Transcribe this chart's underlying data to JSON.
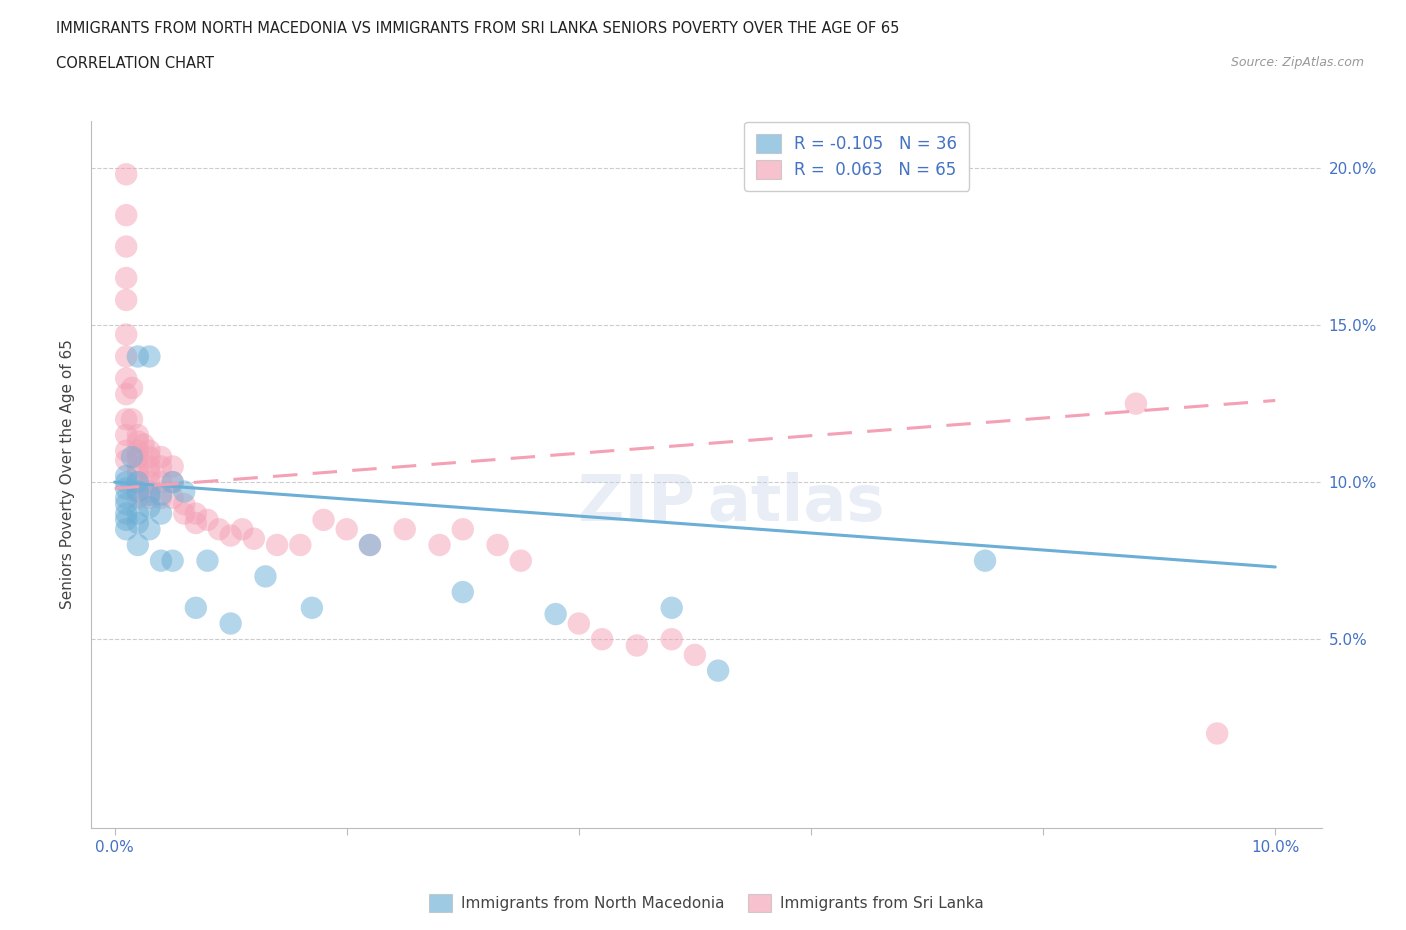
{
  "title": "IMMIGRANTS FROM NORTH MACEDONIA VS IMMIGRANTS FROM SRI LANKA SENIORS POVERTY OVER THE AGE OF 65",
  "subtitle": "CORRELATION CHART",
  "source": "Source: ZipAtlas.com",
  "ylabel": "Seniors Poverty Over the Age of 65",
  "xlim": [
    -0.002,
    0.104
  ],
  "ylim": [
    -0.01,
    0.215
  ],
  "color_blue": "#6baed6",
  "color_pink": "#f4a0b5",
  "legend1_label": "R = -0.105   N = 36",
  "legend2_label": "R =  0.063   N = 65",
  "nm_line_x": [
    0.0,
    0.1
  ],
  "nm_line_y": [
    0.1,
    0.073
  ],
  "sl_line_x": [
    0.0,
    0.1
  ],
  "sl_line_y": [
    0.098,
    0.126
  ],
  "ytick_positions": [
    0.0,
    0.05,
    0.1,
    0.15,
    0.2
  ],
  "ytick_labels": [
    "",
    "5.0%",
    "10.0%",
    "15.0%",
    "20.0%"
  ],
  "xtick_positions": [
    0.0,
    0.02,
    0.04,
    0.06,
    0.08,
    0.1
  ],
  "xtick_labels": [
    "0.0%",
    "",
    "",
    "",
    "",
    "10.0%"
  ],
  "hgrid_lines": [
    0.05,
    0.1,
    0.15,
    0.2
  ],
  "nm_x": [
    0.001,
    0.001,
    0.001,
    0.001,
    0.001,
    0.001,
    0.001,
    0.001,
    0.0015,
    0.002,
    0.002,
    0.002,
    0.002,
    0.002,
    0.002,
    0.003,
    0.003,
    0.003,
    0.003,
    0.004,
    0.004,
    0.004,
    0.005,
    0.005,
    0.006,
    0.007,
    0.008,
    0.01,
    0.013,
    0.017,
    0.022,
    0.03,
    0.038,
    0.048,
    0.052,
    0.075
  ],
  "nm_y": [
    0.095,
    0.098,
    0.102,
    0.1,
    0.093,
    0.09,
    0.088,
    0.085,
    0.108,
    0.097,
    0.09,
    0.087,
    0.08,
    0.1,
    0.14,
    0.096,
    0.092,
    0.085,
    0.14,
    0.09,
    0.096,
    0.075,
    0.1,
    0.075,
    0.097,
    0.06,
    0.075,
    0.055,
    0.07,
    0.06,
    0.08,
    0.065,
    0.058,
    0.06,
    0.04,
    0.075
  ],
  "sl_x": [
    0.001,
    0.001,
    0.001,
    0.001,
    0.001,
    0.001,
    0.001,
    0.001,
    0.001,
    0.001,
    0.001,
    0.001,
    0.001,
    0.0015,
    0.0015,
    0.002,
    0.002,
    0.002,
    0.002,
    0.002,
    0.002,
    0.002,
    0.002,
    0.002,
    0.0025,
    0.003,
    0.003,
    0.003,
    0.003,
    0.003,
    0.003,
    0.003,
    0.004,
    0.004,
    0.004,
    0.004,
    0.005,
    0.005,
    0.005,
    0.006,
    0.006,
    0.007,
    0.007,
    0.008,
    0.009,
    0.01,
    0.011,
    0.012,
    0.014,
    0.016,
    0.018,
    0.02,
    0.022,
    0.025,
    0.028,
    0.03,
    0.033,
    0.035,
    0.04,
    0.042,
    0.045,
    0.048,
    0.05,
    0.088,
    0.095
  ],
  "sl_y": [
    0.198,
    0.185,
    0.175,
    0.165,
    0.158,
    0.147,
    0.14,
    0.133,
    0.128,
    0.12,
    0.115,
    0.11,
    0.107,
    0.13,
    0.12,
    0.115,
    0.113,
    0.11,
    0.108,
    0.105,
    0.103,
    0.1,
    0.097,
    0.095,
    0.112,
    0.11,
    0.108,
    0.105,
    0.103,
    0.1,
    0.097,
    0.095,
    0.108,
    0.105,
    0.1,
    0.095,
    0.105,
    0.1,
    0.095,
    0.093,
    0.09,
    0.09,
    0.087,
    0.088,
    0.085,
    0.083,
    0.085,
    0.082,
    0.08,
    0.08,
    0.088,
    0.085,
    0.08,
    0.085,
    0.08,
    0.085,
    0.08,
    0.075,
    0.055,
    0.05,
    0.048,
    0.05,
    0.045,
    0.125,
    0.02
  ]
}
